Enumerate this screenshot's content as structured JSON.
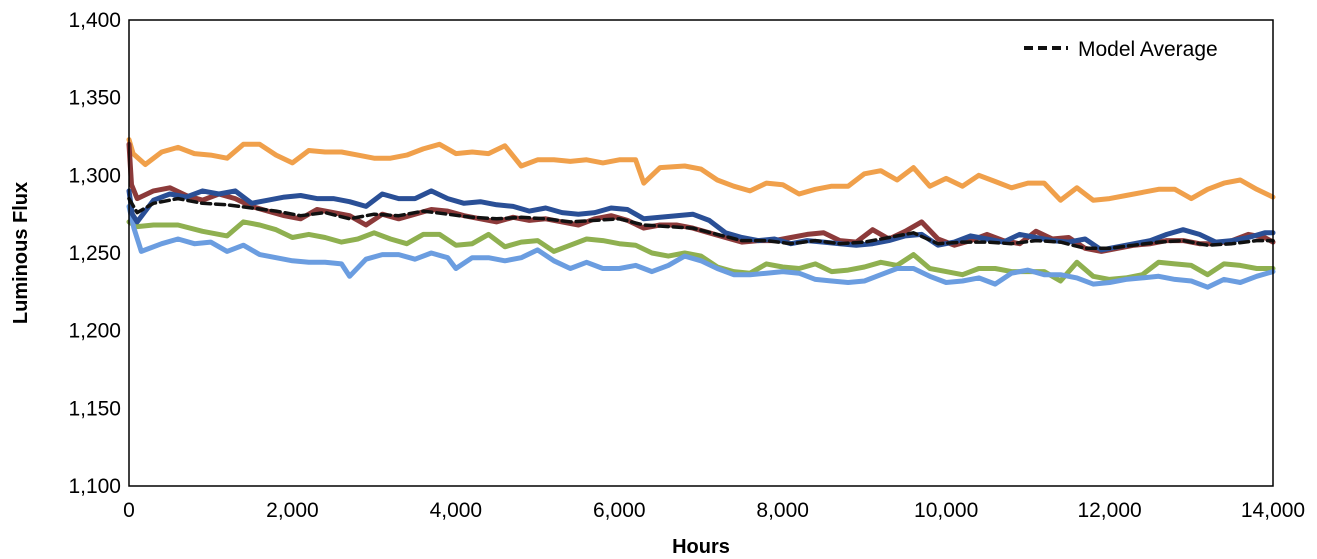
{
  "chart_data": {
    "type": "line",
    "xlabel": "Hours",
    "ylabel": "Luminous Flux",
    "xlim": [
      0,
      14000
    ],
    "ylim": [
      1100,
      1400
    ],
    "x_ticks": [
      "0",
      "2,000",
      "4,000",
      "6,000",
      "8,000",
      "10,000",
      "12,000",
      "14,000"
    ],
    "y_ticks": [
      "1,100",
      "1,150",
      "1,200",
      "1,250",
      "1,300",
      "1,350",
      "1,400"
    ],
    "grid": false,
    "legend": {
      "position": "top-right",
      "entries": [
        "Model Average"
      ]
    },
    "series": [
      {
        "color": "#f0a04b",
        "line_style": "solid",
        "x": [
          0,
          50,
          200,
          400,
          600,
          800,
          1000,
          1200,
          1400,
          1600,
          1800,
          2000,
          2200,
          2400,
          2600,
          2800,
          3000,
          3200,
          3400,
          3600,
          3800,
          4000,
          4200,
          4400,
          4600,
          4800,
          5000,
          5200,
          5400,
          5600,
          5800,
          6000,
          6200,
          6300,
          6500,
          6800,
          7000,
          7200,
          7400,
          7600,
          7800,
          8000,
          8200,
          8400,
          8600,
          8800,
          9000,
          9200,
          9400,
          9600,
          9800,
          10000,
          10200,
          10400,
          10600,
          10800,
          11000,
          11200,
          11400,
          11600,
          11800,
          12000,
          12200,
          12400,
          12600,
          12800,
          13000,
          13200,
          13400,
          13600,
          13800,
          14000
        ],
        "y": [
          1323,
          1314,
          1307,
          1315,
          1318,
          1314,
          1313,
          1311,
          1320,
          1320,
          1313,
          1308,
          1316,
          1315,
          1315,
          1313,
          1311,
          1311,
          1313,
          1317,
          1320,
          1314,
          1315,
          1314,
          1319,
          1306,
          1310,
          1310,
          1309,
          1310,
          1308,
          1310,
          1310,
          1295,
          1305,
          1306,
          1304,
          1297,
          1293,
          1290,
          1295,
          1294,
          1288,
          1291,
          1293,
          1293,
          1301,
          1303,
          1297,
          1305,
          1293,
          1298,
          1293,
          1300,
          1296,
          1292,
          1295,
          1295,
          1284,
          1292,
          1284,
          1285,
          1287,
          1289,
          1291,
          1291,
          1285,
          1291,
          1295,
          1297,
          1291,
          1286
        ]
      },
      {
        "color": "#8fb050",
        "line_style": "solid",
        "x": [
          0,
          100,
          300,
          600,
          900,
          1200,
          1400,
          1600,
          1800,
          2000,
          2200,
          2400,
          2600,
          2800,
          3000,
          3200,
          3400,
          3600,
          3800,
          4000,
          4200,
          4400,
          4600,
          4800,
          5000,
          5200,
          5400,
          5600,
          5800,
          6000,
          6200,
          6400,
          6600,
          6800,
          7000,
          7200,
          7400,
          7600,
          7800,
          8000,
          8200,
          8400,
          8600,
          8800,
          9000,
          9200,
          9400,
          9600,
          9800,
          10000,
          10200,
          10400,
          10600,
          10800,
          11000,
          11200,
          11400,
          11600,
          11800,
          12000,
          12200,
          12400,
          12600,
          12800,
          13000,
          13200,
          13400,
          13600,
          13800,
          14000
        ],
        "y": [
          1270,
          1267,
          1268,
          1268,
          1264,
          1261,
          1270,
          1268,
          1265,
          1260,
          1262,
          1260,
          1257,
          1259,
          1263,
          1259,
          1256,
          1262,
          1262,
          1255,
          1256,
          1262,
          1254,
          1257,
          1258,
          1251,
          1255,
          1259,
          1258,
          1256,
          1255,
          1250,
          1248,
          1250,
          1248,
          1241,
          1238,
          1237,
          1243,
          1241,
          1240,
          1243,
          1238,
          1239,
          1241,
          1244,
          1242,
          1249,
          1240,
          1238,
          1236,
          1240,
          1240,
          1238,
          1238,
          1238,
          1232,
          1244,
          1235,
          1233,
          1234,
          1236,
          1244,
          1243,
          1242,
          1236,
          1243,
          1242,
          1240,
          1240
        ]
      },
      {
        "color": "#6b9de0",
        "line_style": "solid",
        "x": [
          0,
          60,
          150,
          400,
          600,
          800,
          1000,
          1200,
          1400,
          1600,
          1800,
          2000,
          2200,
          2400,
          2600,
          2700,
          2900,
          3100,
          3300,
          3500,
          3700,
          3900,
          4000,
          4200,
          4400,
          4600,
          4800,
          5000,
          5200,
          5400,
          5600,
          5800,
          6000,
          6200,
          6400,
          6600,
          6800,
          7000,
          7200,
          7400,
          7600,
          7800,
          8000,
          8200,
          8400,
          8600,
          8800,
          9000,
          9200,
          9400,
          9600,
          9800,
          10000,
          10200,
          10400,
          10600,
          10800,
          11000,
          11200,
          11400,
          11600,
          11800,
          12000,
          12200,
          12400,
          12600,
          12800,
          13000,
          13200,
          13400,
          13600,
          13800,
          14000
        ],
        "y": [
          1280,
          1266,
          1251,
          1256,
          1259,
          1256,
          1257,
          1251,
          1255,
          1249,
          1247,
          1245,
          1244,
          1244,
          1243,
          1235,
          1246,
          1249,
          1249,
          1246,
          1250,
          1247,
          1240,
          1247,
          1247,
          1245,
          1247,
          1252,
          1245,
          1240,
          1244,
          1240,
          1240,
          1242,
          1238,
          1242,
          1248,
          1245,
          1240,
          1236,
          1236,
          1237,
          1238,
          1237,
          1233,
          1232,
          1231,
          1232,
          1236,
          1240,
          1240,
          1235,
          1231,
          1232,
          1234,
          1230,
          1237,
          1239,
          1236,
          1236,
          1234,
          1230,
          1231,
          1233,
          1234,
          1235,
          1233,
          1232,
          1228,
          1233,
          1231,
          1235,
          1238
        ]
      },
      {
        "color": "#8c3a3a",
        "line_style": "solid",
        "x": [
          0,
          30,
          100,
          300,
          500,
          700,
          900,
          1100,
          1300,
          1500,
          1700,
          1900,
          2100,
          2300,
          2500,
          2700,
          2900,
          3100,
          3300,
          3500,
          3700,
          3900,
          4100,
          4300,
          4500,
          4700,
          4900,
          5100,
          5300,
          5500,
          5700,
          5900,
          6100,
          6300,
          6500,
          6700,
          6900,
          7100,
          7300,
          7500,
          7700,
          7900,
          8100,
          8300,
          8500,
          8700,
          8900,
          9100,
          9300,
          9500,
          9700,
          9900,
          10100,
          10300,
          10500,
          10700,
          10900,
          11100,
          11300,
          11500,
          11700,
          11900,
          12100,
          12300,
          12500,
          12700,
          12900,
          13100,
          13300,
          13500,
          13700,
          13900,
          14000
        ],
        "y": [
          1320,
          1294,
          1285,
          1290,
          1292,
          1287,
          1284,
          1288,
          1285,
          1280,
          1277,
          1274,
          1272,
          1278,
          1276,
          1274,
          1268,
          1275,
          1272,
          1275,
          1278,
          1277,
          1274,
          1272,
          1270,
          1273,
          1271,
          1272,
          1270,
          1268,
          1272,
          1274,
          1271,
          1266,
          1268,
          1268,
          1266,
          1263,
          1260,
          1257,
          1258,
          1258,
          1260,
          1262,
          1263,
          1258,
          1257,
          1265,
          1259,
          1264,
          1270,
          1259,
          1255,
          1258,
          1262,
          1258,
          1256,
          1264,
          1259,
          1260,
          1253,
          1251,
          1253,
          1255,
          1256,
          1258,
          1258,
          1256,
          1256,
          1258,
          1262,
          1260,
          1257
        ]
      },
      {
        "color": "#2a4f96",
        "line_style": "solid",
        "x": [
          0,
          40,
          100,
          300,
          500,
          700,
          900,
          1100,
          1300,
          1500,
          1700,
          1900,
          2100,
          2300,
          2500,
          2700,
          2900,
          3100,
          3300,
          3500,
          3700,
          3900,
          4100,
          4300,
          4500,
          4700,
          4900,
          5100,
          5300,
          5500,
          5700,
          5900,
          6100,
          6300,
          6500,
          6700,
          6900,
          7100,
          7300,
          7500,
          7700,
          7900,
          8100,
          8300,
          8500,
          8700,
          8900,
          9100,
          9300,
          9500,
          9700,
          9900,
          10100,
          10300,
          10500,
          10700,
          10900,
          11100,
          11300,
          11500,
          11700,
          11900,
          12100,
          12300,
          12500,
          12700,
          12900,
          13100,
          13300,
          13500,
          13700,
          13900,
          14000
        ],
        "y": [
          1290,
          1275,
          1270,
          1284,
          1288,
          1286,
          1290,
          1288,
          1290,
          1282,
          1284,
          1286,
          1287,
          1285,
          1285,
          1283,
          1280,
          1288,
          1285,
          1285,
          1290,
          1285,
          1282,
          1283,
          1281,
          1280,
          1277,
          1279,
          1276,
          1275,
          1276,
          1279,
          1278,
          1272,
          1273,
          1274,
          1275,
          1271,
          1263,
          1260,
          1258,
          1259,
          1256,
          1258,
          1257,
          1256,
          1255,
          1256,
          1258,
          1261,
          1262,
          1255,
          1257,
          1261,
          1259,
          1257,
          1262,
          1260,
          1258,
          1257,
          1259,
          1252,
          1254,
          1256,
          1258,
          1262,
          1265,
          1262,
          1257,
          1258,
          1260,
          1263,
          1263
        ]
      },
      {
        "name": "Model Average",
        "color": "#111111",
        "line_style": "dashed",
        "x": [
          0,
          100,
          300,
          600,
          900,
          1200,
          1500,
          1800,
          2100,
          2400,
          2700,
          3000,
          3300,
          3600,
          3900,
          4200,
          4500,
          4800,
          5100,
          5400,
          5700,
          6000,
          6300,
          6600,
          6900,
          7200,
          7500,
          7800,
          8100,
          8400,
          8700,
          9000,
          9300,
          9600,
          9900,
          10200,
          10500,
          10800,
          11100,
          11400,
          11700,
          12000,
          12300,
          12600,
          12900,
          13200,
          13500,
          13800,
          14000
        ],
        "y": [
          1285,
          1276,
          1282,
          1285,
          1282,
          1281,
          1279,
          1277,
          1274,
          1276,
          1272,
          1275,
          1274,
          1277,
          1275,
          1273,
          1272,
          1273,
          1272,
          1270,
          1271,
          1272,
          1268,
          1267,
          1266,
          1262,
          1258,
          1258,
          1256,
          1258,
          1256,
          1257,
          1260,
          1263,
          1256,
          1257,
          1257,
          1256,
          1258,
          1257,
          1253,
          1253,
          1255,
          1257,
          1258,
          1255,
          1256,
          1258,
          1258
        ]
      }
    ]
  }
}
